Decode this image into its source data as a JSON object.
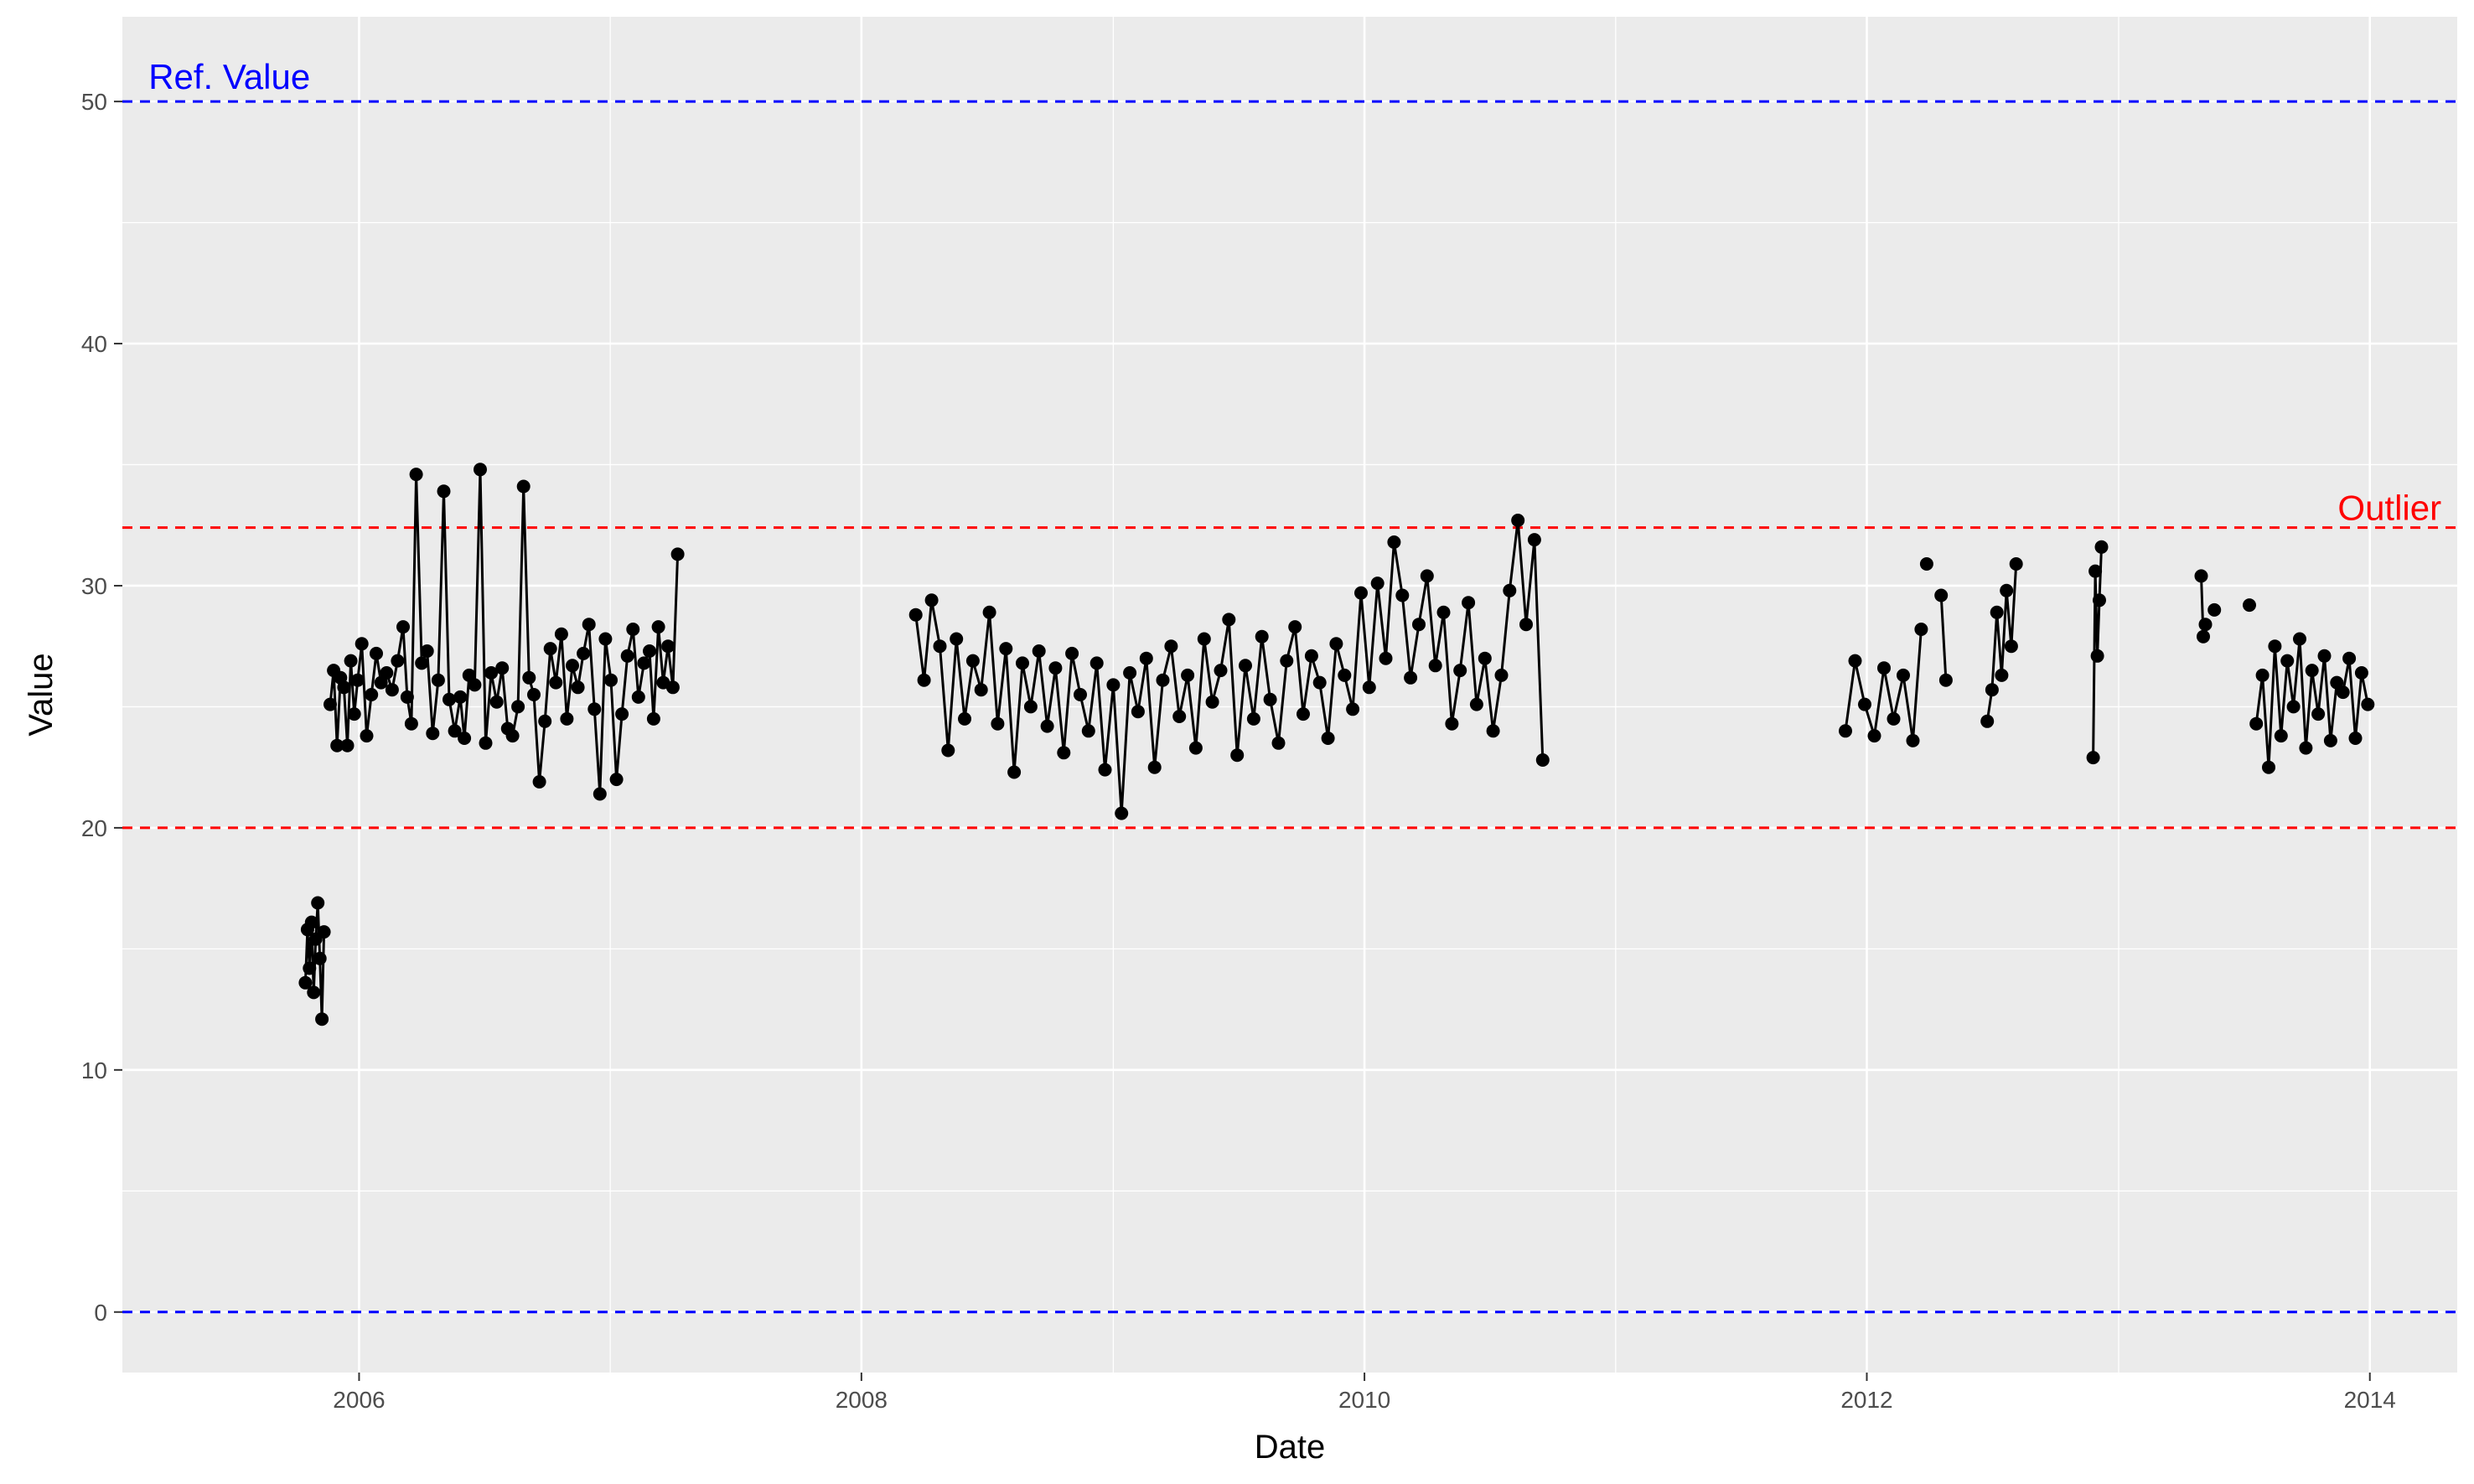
{
  "chart_data": {
    "type": "line",
    "title": "",
    "xlabel": "Date",
    "ylabel": "Value",
    "x_type": "date",
    "xlim": [
      "2005-01-22",
      "2014-05-08"
    ],
    "ylim": [
      -2.5,
      53.5
    ],
    "x_ticks": [
      "2006",
      "2008",
      "2010",
      "2012",
      "2014"
    ],
    "y_ticks": [
      0,
      10,
      20,
      30,
      40,
      50
    ],
    "grid": true,
    "legend": "none",
    "colors": {
      "panel": "#EBEBEB",
      "grid": "#FFFFFF",
      "series": "#000000",
      "ref": "#0000FF",
      "outlier": "#FF0000"
    },
    "reference_lines": [
      {
        "name": "ref-upper",
        "y": 50,
        "color": "#0000FF",
        "style": "dashed"
      },
      {
        "name": "ref-lower",
        "y": 0,
        "color": "#0000FF",
        "style": "dashed"
      },
      {
        "name": "outlier-upper",
        "y": 32.4,
        "color": "#FF0000",
        "style": "dashed"
      },
      {
        "name": "outlier-lower",
        "y": 20,
        "color": "#FF0000",
        "style": "dashed"
      }
    ],
    "annotations": [
      {
        "text": "Ref. Value",
        "x": "2005-03-01",
        "y": 51,
        "color": "#0000FF",
        "anchor": "start"
      },
      {
        "text": "Outlier",
        "x": "2014-04-15",
        "y": 33.2,
        "color": "#FF0000",
        "anchor": "end"
      }
    ],
    "series": [
      {
        "segments": [
          {
            "x": [
              "2005-10-15",
              "2005-10-18",
              "2005-10-21",
              "2005-10-24",
              "2005-10-27",
              "2005-10-30",
              "2005-11-02",
              "2005-11-05",
              "2005-11-08",
              "2005-11-11"
            ],
            "y": [
              13.6,
              15.8,
              14.2,
              16.1,
              13.2,
              15.4,
              16.9,
              14.6,
              12.1,
              15.7
            ]
          },
          {
            "x": [
              "2005-11-20",
              "2005-11-25",
              "2005-11-30",
              "2005-12-05",
              "2005-12-10",
              "2005-12-15",
              "2005-12-20",
              "2005-12-25",
              "2005-12-30",
              "2006-01-05",
              "2006-01-12",
              "2006-01-19",
              "2006-01-26",
              "2006-02-02",
              "2006-02-10",
              "2006-02-18",
              "2006-02-26",
              "2006-03-06",
              "2006-03-12",
              "2006-03-18",
              "2006-03-25",
              "2006-04-02",
              "2006-04-10",
              "2006-04-18",
              "2006-04-26",
              "2006-05-04",
              "2006-05-12",
              "2006-05-20",
              "2006-05-28",
              "2006-06-03",
              "2006-06-10",
              "2006-06-18",
              "2006-06-26",
              "2006-07-04",
              "2006-07-12",
              "2006-07-20",
              "2006-07-28",
              "2006-08-05",
              "2006-08-12",
              "2006-08-20",
              "2006-08-28",
              "2006-09-05",
              "2006-09-12",
              "2006-09-20",
              "2006-09-28",
              "2006-10-06",
              "2006-10-14",
              "2006-10-22",
              "2006-10-30",
              "2006-11-07",
              "2006-11-15",
              "2006-11-23",
              "2006-12-01",
              "2006-12-09",
              "2006-12-17",
              "2006-12-25",
              "2007-01-02",
              "2007-01-10",
              "2007-01-18",
              "2007-01-26",
              "2007-02-03",
              "2007-02-11",
              "2007-02-19",
              "2007-02-27",
              "2007-03-05",
              "2007-03-12",
              "2007-03-19",
              "2007-03-26",
              "2007-04-02",
              "2007-04-09"
            ],
            "y": [
              25.1,
              26.5,
              23.4,
              26.2,
              25.8,
              23.4,
              26.9,
              24.7,
              26.1,
              27.6,
              23.8,
              25.5,
              27.2,
              26.0,
              26.4,
              25.7,
              26.9,
              28.3,
              25.4,
              24.3,
              34.6,
              26.8,
              27.3,
              23.9,
              26.1,
              33.9,
              25.3,
              24.0,
              25.4,
              23.7,
              26.3,
              25.9,
              34.8,
              23.5,
              26.4,
              25.2,
              26.6,
              24.1,
              23.8,
              25.0,
              34.1,
              26.2,
              25.5,
              21.9,
              24.4,
              27.4,
              26.0,
              28.0,
              24.5,
              26.7,
              25.8,
              27.2,
              28.4,
              24.9,
              21.4,
              27.8,
              26.1,
              22.0,
              24.7,
              27.1,
              28.2,
              25.4,
              26.8,
              27.3,
              24.5,
              28.3,
              26.0,
              27.5,
              25.8,
              31.3
            ]
          },
          {
            "x": [
              "2008-03-20",
              "2008-04-01",
              "2008-04-12",
              "2008-04-24",
              "2008-05-06",
              "2008-05-18",
              "2008-05-30",
              "2008-06-11",
              "2008-06-23",
              "2008-07-05",
              "2008-07-17",
              "2008-07-29",
              "2008-08-10",
              "2008-08-22",
              "2008-09-03",
              "2008-09-15",
              "2008-09-27",
              "2008-10-09",
              "2008-10-21",
              "2008-11-02",
              "2008-11-14",
              "2008-11-26",
              "2008-12-08",
              "2008-12-20",
              "2009-01-01",
              "2009-01-13",
              "2009-01-25",
              "2009-02-06",
              "2009-02-18",
              "2009-03-02",
              "2009-03-14",
              "2009-03-26",
              "2009-04-07",
              "2009-04-19",
              "2009-05-01",
              "2009-05-13",
              "2009-05-25",
              "2009-06-06",
              "2009-06-18",
              "2009-06-30",
              "2009-07-12",
              "2009-07-24",
              "2009-08-05",
              "2009-08-17",
              "2009-08-29",
              "2009-09-10",
              "2009-09-22",
              "2009-10-04",
              "2009-10-16",
              "2009-10-28",
              "2009-11-09",
              "2009-11-21",
              "2009-12-03",
              "2009-12-15",
              "2009-12-27",
              "2010-01-08",
              "2010-01-20",
              "2010-02-01",
              "2010-02-13",
              "2010-02-25",
              "2010-03-09",
              "2010-03-21",
              "2010-04-02",
              "2010-04-14",
              "2010-04-26",
              "2010-05-08",
              "2010-05-20",
              "2010-06-01",
              "2010-06-13",
              "2010-06-25",
              "2010-07-07",
              "2010-07-19",
              "2010-07-31",
              "2010-08-12",
              "2010-08-24",
              "2010-09-05",
              "2010-09-17"
            ],
            "y": [
              28.8,
              26.1,
              29.4,
              27.5,
              23.2,
              27.8,
              24.5,
              26.9,
              25.7,
              28.9,
              24.3,
              27.4,
              22.3,
              26.8,
              25.0,
              27.3,
              24.2,
              26.6,
              23.1,
              27.2,
              25.5,
              24.0,
              26.8,
              22.4,
              25.9,
              20.6,
              26.4,
              24.8,
              27.0,
              22.5,
              26.1,
              27.5,
              24.6,
              26.3,
              23.3,
              27.8,
              25.2,
              26.5,
              28.6,
              23.0,
              26.7,
              24.5,
              27.9,
              25.3,
              23.5,
              26.9,
              28.3,
              24.7,
              27.1,
              26.0,
              23.7,
              27.6,
              26.3,
              24.9,
              29.7,
              25.8,
              30.1,
              27.0,
              31.8,
              29.6,
              26.2,
              28.4,
              30.4,
              26.7,
              28.9,
              24.3,
              26.5,
              29.3,
              25.1,
              27.0,
              24.0,
              26.3,
              29.8,
              32.7,
              28.4,
              31.9,
              22.8
            ]
          },
          {
            "x": [
              "2011-12-01",
              "2011-12-15",
              "2011-12-29",
              "2012-01-12",
              "2012-01-26",
              "2012-02-09",
              "2012-02-23",
              "2012-03-08",
              "2012-03-20"
            ],
            "y": [
              24.0,
              26.9,
              25.1,
              23.8,
              26.6,
              24.5,
              26.3,
              23.6,
              28.2
            ]
          },
          {
            "x": [
              "2012-03-28"
            ],
            "y": [
              30.9
            ]
          },
          {
            "x": [
              "2012-04-18",
              "2012-04-25"
            ],
            "y": [
              29.6,
              26.1
            ]
          },
          {
            "x": [
              "2012-06-24",
              "2012-07-01",
              "2012-07-08",
              "2012-07-15",
              "2012-07-22",
              "2012-07-29",
              "2012-08-05"
            ],
            "y": [
              24.4,
              25.7,
              28.9,
              26.3,
              29.8,
              27.5,
              30.9
            ]
          },
          {
            "x": [
              "2012-11-25",
              "2012-11-28",
              "2012-12-01",
              "2012-12-04",
              "2012-12-07"
            ],
            "y": [
              22.9,
              30.6,
              27.1,
              29.4,
              31.6
            ]
          },
          {
            "x": [
              "2013-05-01",
              "2013-05-04",
              "2013-05-07"
            ],
            "y": [
              30.4,
              27.9,
              28.4
            ]
          },
          {
            "x": [
              "2013-05-20"
            ],
            "y": [
              29.0
            ]
          },
          {
            "x": [
              "2013-07-10"
            ],
            "y": [
              29.2
            ]
          },
          {
            "x": [
              "2013-07-20",
              "2013-07-29",
              "2013-08-07",
              "2013-08-16",
              "2013-08-25",
              "2013-09-03",
              "2013-09-12",
              "2013-09-21",
              "2013-09-30",
              "2013-10-09",
              "2013-10-18",
              "2013-10-27",
              "2013-11-05",
              "2013-11-14",
              "2013-11-23",
              "2013-12-02",
              "2013-12-11",
              "2013-12-20",
              "2013-12-29"
            ],
            "y": [
              24.3,
              26.3,
              22.5,
              27.5,
              23.8,
              26.9,
              25.0,
              27.8,
              23.3,
              26.5,
              24.7,
              27.1,
              23.6,
              26.0,
              25.6,
              27.0,
              23.7,
              26.4,
              25.1
            ]
          }
        ]
      }
    ]
  }
}
